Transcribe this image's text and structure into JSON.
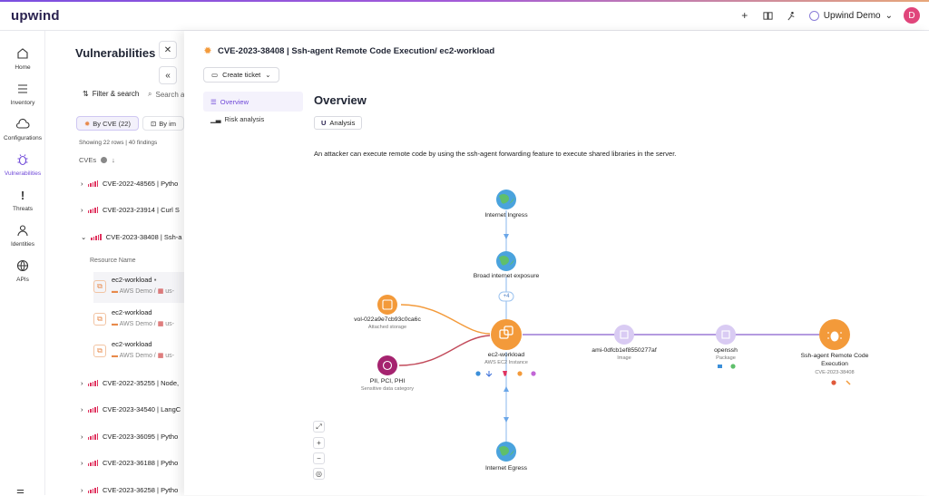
{
  "topbar": {
    "logo_text": "upwind",
    "org_label": "Upwind Demo",
    "avatar_letter": "D",
    "add_icon": "plus-icon",
    "docs_icon": "book-icon",
    "support_icon": "support-icon"
  },
  "sidebar": {
    "items": [
      {
        "label": "Home",
        "icon": "home-icon"
      },
      {
        "label": "Inventory",
        "icon": "list-icon"
      },
      {
        "label": "Configurations",
        "icon": "cloud-icon"
      },
      {
        "label": "Vulnerabilities",
        "icon": "bug-icon"
      },
      {
        "label": "Threats",
        "icon": "alert-icon"
      },
      {
        "label": "Identities",
        "icon": "user-icon"
      },
      {
        "label": "APIs",
        "icon": "globe-icon"
      }
    ]
  },
  "list": {
    "title": "Vulnerabilities",
    "filter_label": "Filter & search",
    "search_placeholder": "Search a",
    "tab_by_cve": "By CVE (22)",
    "tab_by_image": "By im",
    "showing": "Showing 22 rows | 40 findings",
    "cves_header": "CVEs",
    "rows": [
      "CVE-2022-48565 | Pytho",
      "CVE-2023-23914 | Curl S",
      "CVE-2023-38408 | Ssh-a",
      "CVE-2022-35255 | Node,",
      "CVE-2023-34540 | LangC",
      "CVE-2023-36095 | Pytho",
      "CVE-2023-36188 | Pytho",
      "CVE-2023-36258 | Pytho"
    ],
    "resource_header": "Resource Name",
    "resources": [
      {
        "name": "ec2-workload",
        "account": "AWS Demo / ",
        "region": "us-"
      },
      {
        "name": "ec2-workload",
        "account": "AWS Demo / ",
        "region": "us-"
      },
      {
        "name": "ec2-workload",
        "account": "AWS Demo / ",
        "region": "us-"
      }
    ]
  },
  "detail": {
    "title": "CVE-2023-38408 | Ssh-agent Remote Code Execution/ ec2-workload",
    "create_ticket": "Create ticket",
    "nav_overview": "Overview",
    "nav_risk": "Risk analysis",
    "heading": "Overview",
    "analysis_btn": "Analysis",
    "description": "An attacker can execute remote code by using the ssh-agent forwarding feature to execute shared libraries in the server."
  },
  "graph": {
    "internet_ingress": "Internet Ingress",
    "broad_exposure": "Broad internet exposure",
    "plus_badge": "+4",
    "volume_name": "vol-022a9e7cb93c0ca6c",
    "volume_sub": "Attached storage",
    "sensitive_name": "PII, PCI, PHI",
    "sensitive_sub": "Sensitive data category",
    "workload_name": "ec2-workload",
    "workload_sub": "AWS EC2 Instance",
    "image_name": "ami-0dfcb1ef8550277af",
    "image_sub": "Image",
    "package_name": "openssh",
    "package_sub": "Package",
    "vuln_name_line1": "Ssh-agent Remote Code",
    "vuln_name_line2": "Execution",
    "vuln_sub": "CVE-2023-38408",
    "internet_egress": "Internet Egress",
    "colors": {
      "orange": "#f39a3a",
      "purple_light": "#d9cbf3",
      "magenta": "#a5236f",
      "globe": "#4aa3dd",
      "edge_blue": "#9cc3ef",
      "edge_purple": "#9b7ad6"
    }
  }
}
